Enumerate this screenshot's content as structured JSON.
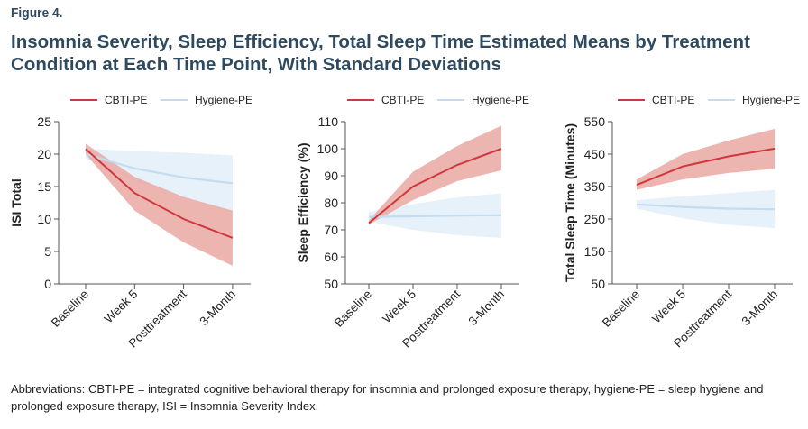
{
  "figure_label": "Figure 4.",
  "title": "Insomnia Severity, Sleep Efficiency, Total Sleep Time Estimated Means by Treatment Condition at Each Time Point, With Standard Deviations",
  "footnote": "Abbreviations: CBTI-PE = integrated cognitive behavioral therapy for insomnia and prolonged exposure therapy, hygiene-PE = sleep hygiene and prolonged exposure therapy, ISI = Insomnia Severity Index.",
  "colors": {
    "cbti": "#d0383e",
    "cbti_band": "#e9a8a2",
    "hygiene": "#c3dcef",
    "hygiene_band": "#e4f0f9",
    "axis": "#555555"
  },
  "chart_data": [
    {
      "type": "line",
      "ylabel": "ISI Total",
      "xlabel": "",
      "categories": [
        "Baseline",
        "Week 5",
        "Posttreatment",
        "3-Month"
      ],
      "yticks": [
        0,
        5,
        10,
        15,
        20,
        25
      ],
      "ylim": [
        0,
        25
      ],
      "legend": "top",
      "series": [
        {
          "name": "CBTI-PE",
          "values": [
            20.8,
            14.0,
            10.0,
            7.1
          ],
          "lower": [
            20.0,
            11.3,
            6.4,
            2.8
          ],
          "upper": [
            21.6,
            16.5,
            13.4,
            11.3
          ]
        },
        {
          "name": "Hygiene-PE",
          "values": [
            20.0,
            17.8,
            16.4,
            15.5
          ],
          "lower": [
            19.3,
            15.8,
            13.3,
            11.0
          ],
          "upper": [
            20.8,
            20.5,
            20.2,
            19.8
          ]
        }
      ]
    },
    {
      "type": "line",
      "ylabel": "Sleep Efficiency (%)",
      "xlabel": "",
      "categories": [
        "Baseline",
        "Week 5",
        "Posttreatment",
        "3-Month"
      ],
      "yticks": [
        50,
        60,
        70,
        80,
        90,
        100,
        110
      ],
      "ylim": [
        50,
        110
      ],
      "legend": "top",
      "series": [
        {
          "name": "CBTI-PE",
          "values": [
            72.5,
            86.0,
            94.0,
            100.0
          ],
          "lower": [
            72.0,
            81.0,
            88.0,
            92.0
          ],
          "upper": [
            73.5,
            91.5,
            101.0,
            108.5
          ]
        },
        {
          "name": "Hygiene-PE",
          "values": [
            74.8,
            75.0,
            75.3,
            75.4
          ],
          "lower": [
            73.0,
            70.0,
            68.0,
            67.0
          ],
          "upper": [
            76.5,
            79.5,
            82.0,
            83.5
          ]
        }
      ]
    },
    {
      "type": "line",
      "ylabel": "Total Sleep Time (Minutes)",
      "xlabel": "",
      "categories": [
        "Baseline",
        "Week 5",
        "Posttreatment",
        "3-Month"
      ],
      "yticks": [
        50,
        150,
        250,
        350,
        450,
        550
      ],
      "ylim": [
        50,
        550
      ],
      "legend": "top",
      "series": [
        {
          "name": "CBTI-PE",
          "values": [
            355,
            412,
            443,
            467
          ],
          "lower": [
            340,
            372,
            392,
            405
          ],
          "upper": [
            372,
            450,
            492,
            528
          ]
        },
        {
          "name": "Hygiene-PE",
          "values": [
            295,
            287,
            282,
            280
          ],
          "lower": [
            282,
            252,
            232,
            222
          ],
          "upper": [
            308,
            320,
            330,
            340
          ]
        }
      ]
    }
  ]
}
